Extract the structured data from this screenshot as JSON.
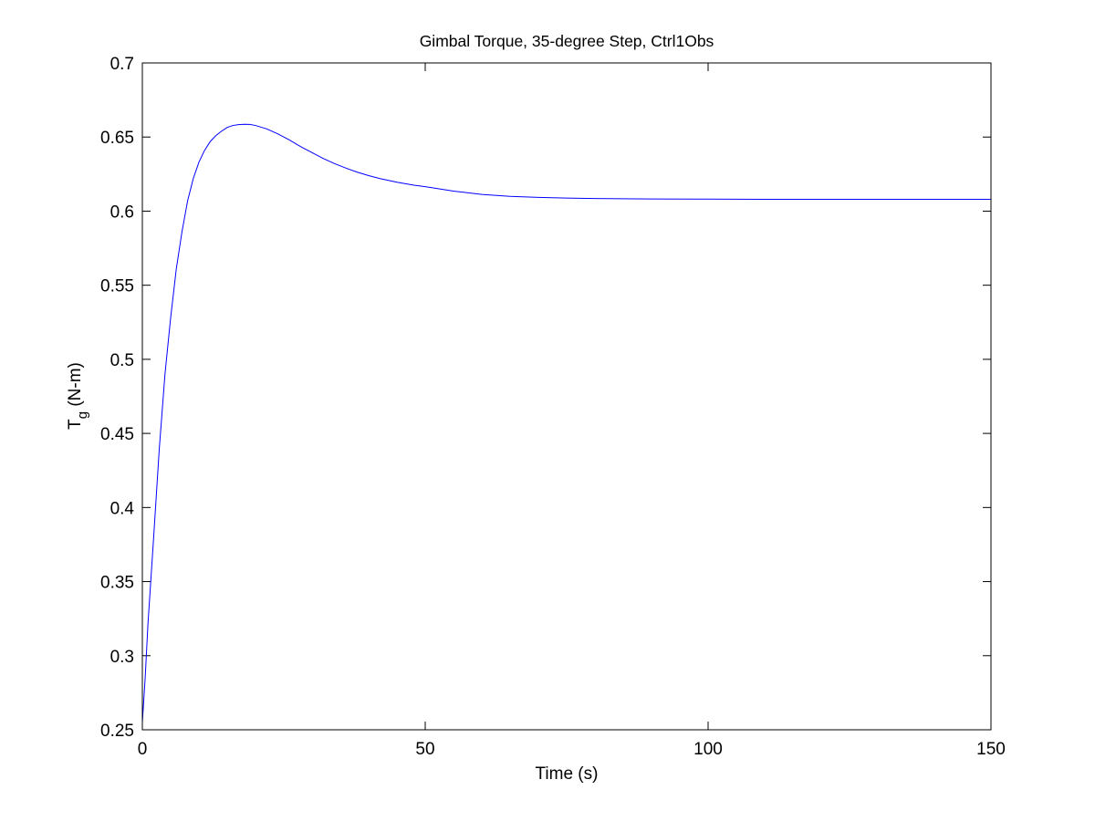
{
  "chart_data": {
    "type": "line",
    "title": "Gimbal Torque, 35-degree Step, Ctrl1Obs",
    "xlabel": "Time (s)",
    "ylabel_main": "T",
    "ylabel_sub": "g",
    "ylabel_unit": " (N-m)",
    "xlim": [
      0,
      150
    ],
    "ylim": [
      0.25,
      0.7
    ],
    "x_ticks": [
      0,
      50,
      100,
      150
    ],
    "x_tick_labels": [
      "0",
      "50",
      "100",
      "150"
    ],
    "y_ticks": [
      0.25,
      0.3,
      0.35,
      0.4,
      0.45,
      0.5,
      0.55,
      0.6,
      0.65,
      0.7
    ],
    "y_tick_labels": [
      "0.25",
      "0.3",
      "0.35",
      "0.4",
      "0.45",
      "0.5",
      "0.55",
      "0.6",
      "0.65",
      "0.7"
    ],
    "grid": false,
    "line_color": "#0000ff",
    "series": [
      {
        "x": [
          0,
          0.5,
          1,
          2,
          3,
          4,
          5,
          6,
          7,
          8,
          9,
          10,
          11,
          12,
          13,
          14,
          15,
          16,
          17,
          18,
          19,
          20,
          22,
          24,
          26,
          28,
          30,
          32,
          34,
          36,
          38,
          40,
          42,
          45,
          48,
          50,
          55,
          60,
          65,
          70,
          75,
          80,
          90,
          100,
          110,
          120,
          130,
          140,
          150
        ],
        "y": [
          0.255,
          0.285,
          0.322,
          0.38,
          0.44,
          0.49,
          0.528,
          0.561,
          0.586,
          0.607,
          0.622,
          0.633,
          0.641,
          0.647,
          0.651,
          0.654,
          0.6565,
          0.6578,
          0.6584,
          0.6586,
          0.6585,
          0.6578,
          0.6555,
          0.652,
          0.648,
          0.6435,
          0.6395,
          0.6355,
          0.632,
          0.629,
          0.6263,
          0.624,
          0.622,
          0.6195,
          0.6175,
          0.6165,
          0.6135,
          0.6113,
          0.61,
          0.6093,
          0.6088,
          0.6085,
          0.6082,
          0.6081,
          0.608,
          0.608,
          0.608,
          0.608,
          0.608
        ]
      }
    ]
  }
}
